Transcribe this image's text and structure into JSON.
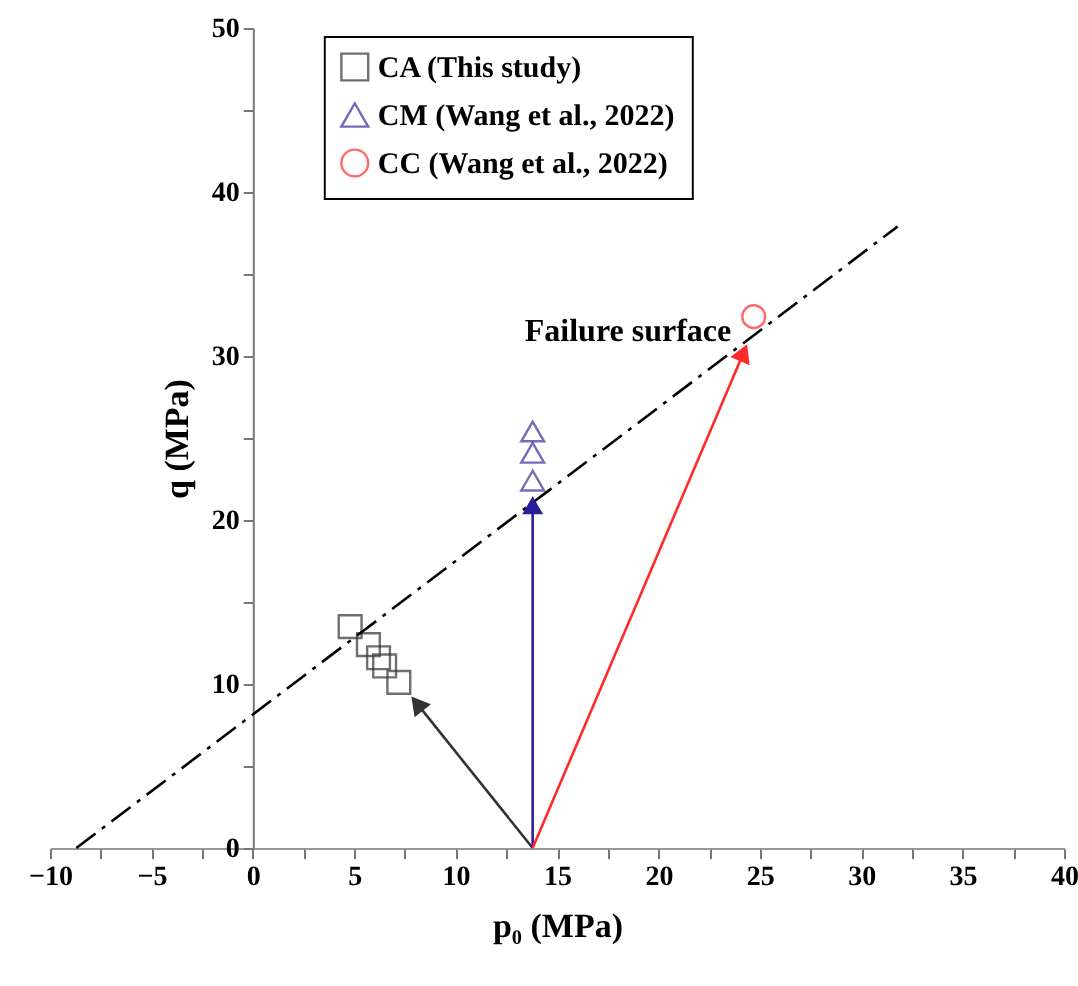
{
  "chart_data": {
    "type": "scatter",
    "xlabel": "p₀ (MPa)",
    "ylabel": "q (MPa)",
    "xlim": [
      -10,
      40
    ],
    "ylim": [
      0,
      50
    ],
    "xticks": [
      -10,
      {
        "value": -7.5,
        "label": null
      },
      -5,
      {
        "value": -2.5,
        "label": null
      },
      0,
      {
        "value": 2.5,
        "label": null
      },
      5,
      {
        "value": 7.5,
        "label": null
      },
      10,
      {
        "value": 12.5,
        "label": null
      },
      15,
      {
        "value": 17.5,
        "label": null
      },
      20,
      {
        "value": 22.5,
        "label": null
      },
      25,
      {
        "value": 27.5,
        "label": null
      },
      30,
      {
        "value": 32.5,
        "label": null
      },
      35,
      {
        "value": 37.5,
        "label": null
      },
      40
    ],
    "yticks": [
      0,
      {
        "value": 5,
        "label": null
      },
      10,
      {
        "value": 15,
        "label": null
      },
      20,
      {
        "value": 25,
        "label": null
      },
      30,
      {
        "value": 35,
        "label": null
      },
      40,
      {
        "value": 45,
        "label": null
      },
      50
    ],
    "grid": false,
    "legend": "top",
    "annotations": [
      "Failure surface"
    ],
    "series": [
      {
        "name": "CA (This study)",
        "marker": "square",
        "color": "#333333",
        "x": [
          4.8,
          5.7,
          6.2,
          6.5,
          7.2
        ],
        "values": [
          13.5,
          12.4,
          11.6,
          11.1,
          10.1
        ]
      },
      {
        "name": "CM (Wang et al., 2022)",
        "marker": "triangle",
        "color": "#3a2f9e",
        "x": [
          13.8,
          13.8,
          13.8
        ],
        "values": [
          25.4,
          24.1,
          22.4
        ]
      },
      {
        "name": "CC (Wang et al., 2022)",
        "marker": "circle",
        "color": "#ff2a2a",
        "x": [
          24.7
        ],
        "values": [
          32.4
        ]
      },
      {
        "type": "line",
        "line_style": "dashed",
        "marker": "none",
        "color": "#000000",
        "x": [
          -8.7,
          31.8
        ],
        "values": [
          0,
          37.9
        ]
      },
      {
        "type": "line",
        "line_style": "solid",
        "marker": "triangle",
        "color": "#333333",
        "x": [
          13.8,
          8.1
        ],
        "values": [
          0,
          8.8
        ]
      },
      {
        "type": "line",
        "line_style": "solid",
        "marker": "triangle",
        "color": "#2a1f99",
        "x": [
          13.8,
          13.8
        ],
        "values": [
          0,
          20.9
        ]
      },
      {
        "type": "line",
        "line_style": "solid",
        "marker": "triangle",
        "color": "#ff2a2a",
        "x": [
          13.8,
          24.2
        ],
        "values": [
          0,
          30.2
        ]
      }
    ]
  }
}
